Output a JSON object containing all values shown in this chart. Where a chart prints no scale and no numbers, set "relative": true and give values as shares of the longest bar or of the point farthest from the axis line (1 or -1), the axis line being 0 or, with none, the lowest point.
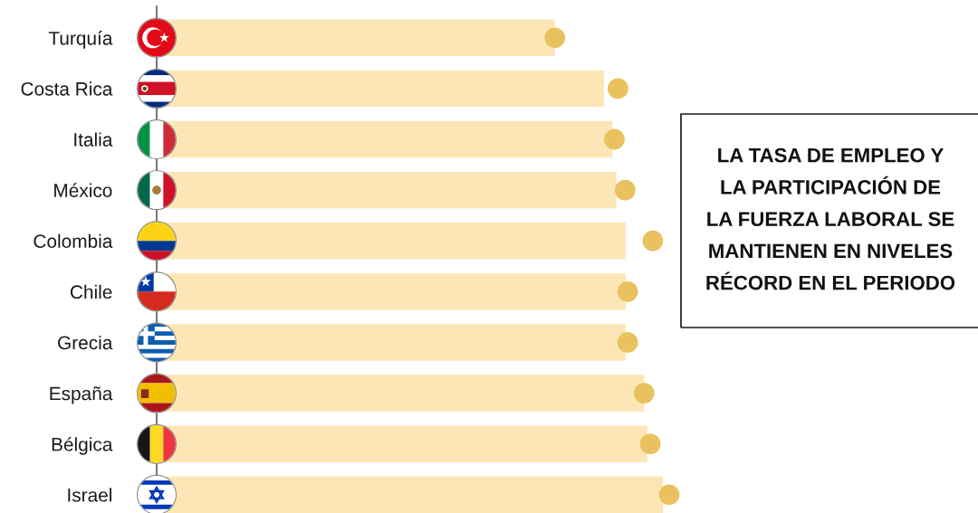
{
  "chart_data": {
    "type": "bar",
    "orientation": "horizontal",
    "relative": true,
    "categories": [
      "Turquía",
      "Costa Rica",
      "Italia",
      "México",
      "Colombia",
      "Chile",
      "Grecia",
      "España",
      "Bélgica",
      "Israel"
    ],
    "series": [
      {
        "color": "#fde6b6",
        "values": [
          0.777,
          0.873,
          0.889,
          0.897,
          0.915,
          0.915,
          0.915,
          0.951,
          0.957,
          0.988
        ]
      },
      {
        "type": "scatter",
        "color": "#e9c25f",
        "values": [
          0.777,
          0.9,
          0.893,
          0.914,
          0.968,
          0.919,
          0.919,
          0.951,
          0.963,
          1.0
        ]
      }
    ],
    "marker": "circle",
    "tick_labels": "y",
    "annotations": [
      "LA TASA DE EMPLEO Y LA PARTICIPACIÓN DE LA FUERZA LABORAL SE MANTIENEN EN NIVELES RÉCORD EN EL PERIODO"
    ]
  }
}
